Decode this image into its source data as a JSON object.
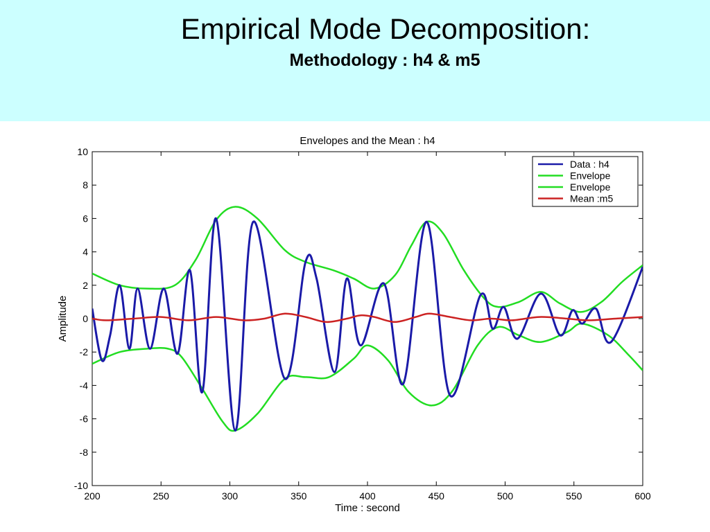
{
  "slide": {
    "title": "Empirical Mode Decomposition:",
    "subtitle": "Methodology : h4 & m5",
    "header_bg": "#ccffff"
  },
  "chart_data": {
    "type": "line",
    "title": "Envelopes and the Mean : h4",
    "xlabel": "Time : second",
    "ylabel": "Amplitude",
    "xlim": [
      200,
      600
    ],
    "ylim": [
      -10,
      10
    ],
    "xticks": [
      200,
      250,
      300,
      350,
      400,
      450,
      500,
      550,
      600
    ],
    "yticks": [
      10,
      8,
      6,
      4,
      2,
      0,
      -2,
      -4,
      -6,
      -8,
      -10
    ],
    "grid": false,
    "legend_position": "top-right",
    "series": [
      {
        "name": "Data : h4",
        "color": "#1a1aa8",
        "points": [
          [
            200,
            0.6
          ],
          [
            207,
            -2.5
          ],
          [
            213,
            -1.0
          ],
          [
            220,
            2.0
          ],
          [
            227,
            -1.8
          ],
          [
            233,
            1.8
          ],
          [
            242,
            -1.8
          ],
          [
            252,
            1.8
          ],
          [
            262,
            -2.1
          ],
          [
            271,
            2.9
          ],
          [
            280,
            -4.4
          ],
          [
            290,
            6.0
          ],
          [
            304,
            -6.7
          ],
          [
            317,
            5.8
          ],
          [
            340,
            -3.6
          ],
          [
            355,
            3.4
          ],
          [
            363,
            2.4
          ],
          [
            376,
            -3.2
          ],
          [
            385,
            2.4
          ],
          [
            395,
            -1.6
          ],
          [
            412,
            2.1
          ],
          [
            426,
            -3.9
          ],
          [
            443,
            5.8
          ],
          [
            460,
            -4.6
          ],
          [
            482,
            1.4
          ],
          [
            491,
            -0.6
          ],
          [
            499,
            0.7
          ],
          [
            509,
            -1.2
          ],
          [
            526,
            1.5
          ],
          [
            540,
            -1.0
          ],
          [
            549,
            0.5
          ],
          [
            556,
            -0.3
          ],
          [
            566,
            0.6
          ],
          [
            577,
            -1.4
          ],
          [
            600,
            3.1
          ]
        ]
      },
      {
        "name": "Envelope",
        "color": "#22dd22",
        "points": [
          [
            200,
            2.7
          ],
          [
            220,
            2.0
          ],
          [
            240,
            1.8
          ],
          [
            260,
            2.0
          ],
          [
            275,
            3.5
          ],
          [
            290,
            5.9
          ],
          [
            304,
            6.7
          ],
          [
            320,
            6.0
          ],
          [
            340,
            4.1
          ],
          [
            355,
            3.4
          ],
          [
            375,
            2.9
          ],
          [
            390,
            2.4
          ],
          [
            405,
            1.8
          ],
          [
            420,
            2.6
          ],
          [
            432,
            4.4
          ],
          [
            443,
            5.8
          ],
          [
            455,
            5.1
          ],
          [
            470,
            2.9
          ],
          [
            485,
            1.2
          ],
          [
            495,
            0.7
          ],
          [
            510,
            1.0
          ],
          [
            526,
            1.6
          ],
          [
            540,
            0.9
          ],
          [
            555,
            0.4
          ],
          [
            570,
            1.0
          ],
          [
            585,
            2.2
          ],
          [
            600,
            3.2
          ]
        ]
      },
      {
        "name": "Envelope",
        "color": "#22dd22",
        "points": [
          [
            200,
            -2.7
          ],
          [
            220,
            -2.0
          ],
          [
            240,
            -1.8
          ],
          [
            255,
            -1.8
          ],
          [
            265,
            -2.3
          ],
          [
            280,
            -4.2
          ],
          [
            295,
            -6.2
          ],
          [
            304,
            -6.7
          ],
          [
            320,
            -5.7
          ],
          [
            340,
            -3.6
          ],
          [
            355,
            -3.5
          ],
          [
            372,
            -3.5
          ],
          [
            390,
            -2.4
          ],
          [
            400,
            -1.6
          ],
          [
            415,
            -2.5
          ],
          [
            430,
            -4.4
          ],
          [
            447,
            -5.2
          ],
          [
            462,
            -4.3
          ],
          [
            480,
            -1.6
          ],
          [
            495,
            -0.5
          ],
          [
            510,
            -1.0
          ],
          [
            526,
            -1.4
          ],
          [
            545,
            -0.8
          ],
          [
            556,
            -0.3
          ],
          [
            575,
            -1.0
          ],
          [
            590,
            -2.2
          ],
          [
            600,
            -3.1
          ]
        ]
      },
      {
        "name": "Mean :m5",
        "color": "#cc2222",
        "points": [
          [
            200,
            0.0
          ],
          [
            210,
            -0.1
          ],
          [
            230,
            0.0
          ],
          [
            250,
            0.1
          ],
          [
            270,
            -0.1
          ],
          [
            290,
            0.1
          ],
          [
            310,
            -0.1
          ],
          [
            325,
            0.0
          ],
          [
            340,
            0.3
          ],
          [
            355,
            0.1
          ],
          [
            370,
            -0.2
          ],
          [
            385,
            0.0
          ],
          [
            395,
            0.2
          ],
          [
            405,
            0.1
          ],
          [
            420,
            -0.2
          ],
          [
            435,
            0.1
          ],
          [
            445,
            0.3
          ],
          [
            460,
            0.1
          ],
          [
            475,
            -0.1
          ],
          [
            490,
            0.0
          ],
          [
            505,
            -0.1
          ],
          [
            525,
            0.1
          ],
          [
            545,
            0.0
          ],
          [
            560,
            -0.1
          ],
          [
            580,
            0.0
          ],
          [
            600,
            0.1
          ]
        ]
      }
    ]
  }
}
